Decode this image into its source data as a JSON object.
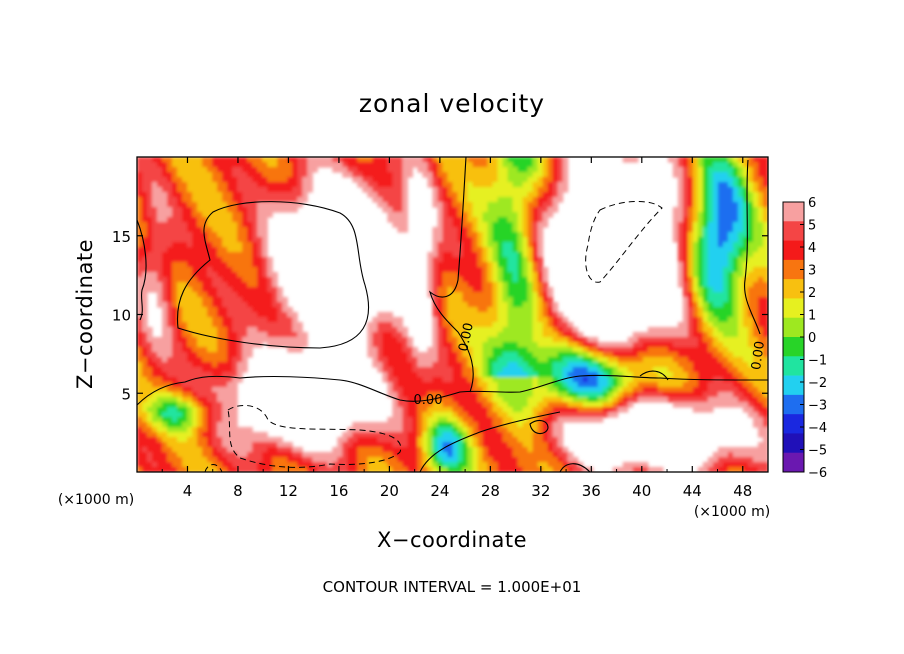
{
  "chart_data": {
    "type": "heatmap",
    "title": "zonal velocity",
    "xlabel": "X−coordinate",
    "ylabel": "Z−coordinate",
    "x_unit": "(×1000 m)",
    "y_unit": "(×1000 m)",
    "xlim": [
      0,
      50
    ],
    "ylim": [
      0,
      20
    ],
    "x_ticks": [
      4,
      8,
      12,
      16,
      20,
      24,
      28,
      32,
      36,
      40,
      44,
      48
    ],
    "x_tick_labels": [
      "4",
      "8",
      "12",
      "16",
      "20",
      "24",
      "28",
      "32",
      "36",
      "40",
      "44",
      "48"
    ],
    "y_ticks": [
      5,
      10,
      15
    ],
    "y_tick_labels": [
      "5",
      "10",
      "15"
    ],
    "colorbar": {
      "min": -6,
      "max": 6,
      "labels": [
        "6",
        "5",
        "4",
        "3",
        "2",
        "1",
        "0",
        "−1",
        "−2",
        "−3",
        "−4",
        "−5",
        "−6"
      ],
      "colors": [
        "#f7a0a0",
        "#f44545",
        "#f41a1a",
        "#f87510",
        "#f8c010",
        "#e6f020",
        "#9ee820",
        "#28d428",
        "#20e4a0",
        "#22d0f0",
        "#1e6ef0",
        "#1a28e0",
        "#2010b8",
        "#6a18b0"
      ]
    },
    "contour_label": "0.00",
    "contour_interval_text": "CONTOUR INTERVAL = 1.000E+01"
  }
}
